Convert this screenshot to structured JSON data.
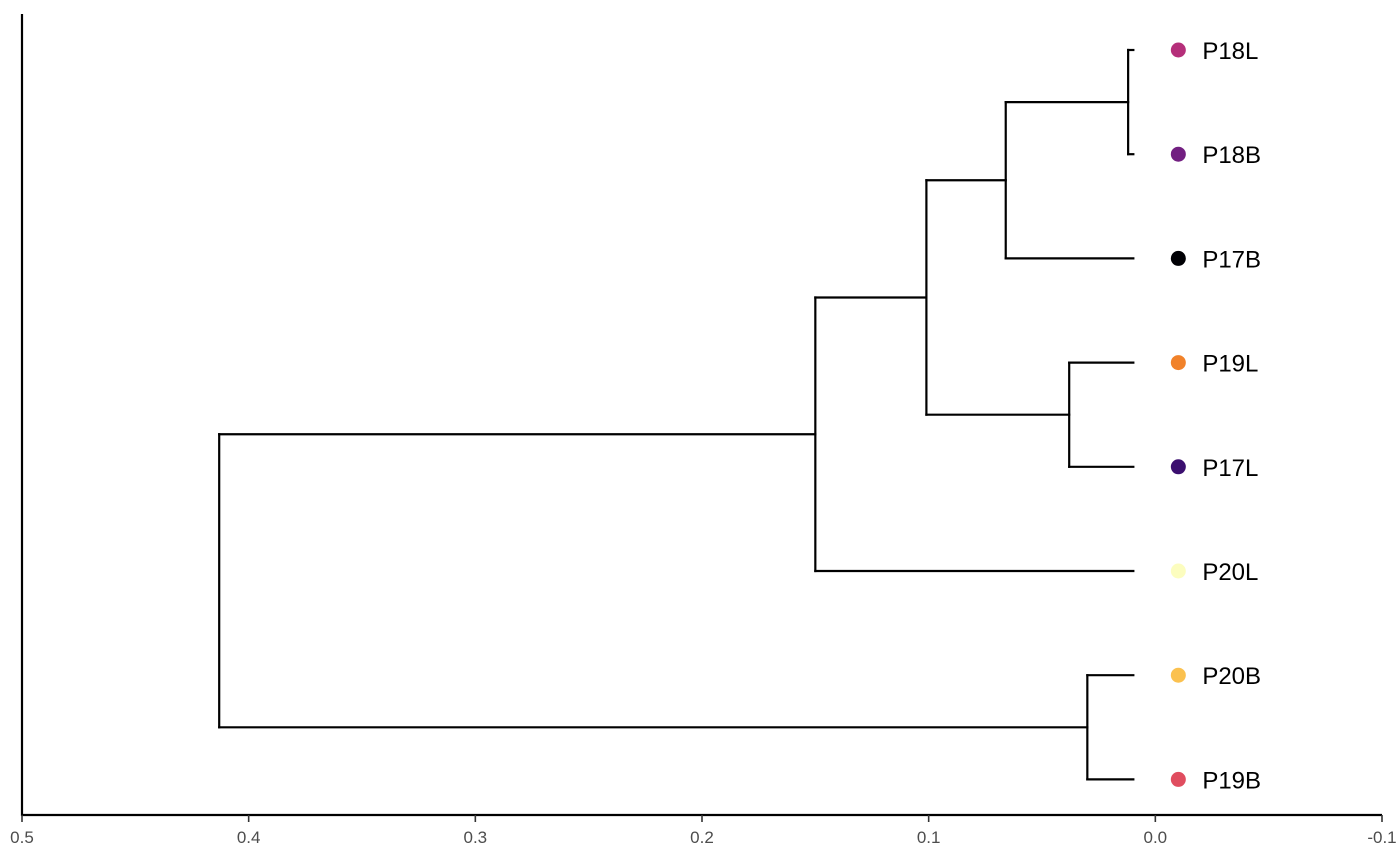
{
  "chart_data": {
    "type": "dendrogram",
    "orientation": "leaves-right",
    "x_axis": {
      "reversed": true,
      "range": [
        0.5,
        -0.1
      ],
      "ticks": [
        0.5,
        0.4,
        0.3,
        0.2,
        0.1,
        0.0,
        -0.1
      ],
      "tick_labels": [
        "0.5",
        "0.4",
        "0.3",
        "0.2",
        "0.1",
        "0.0",
        "-0.1"
      ]
    },
    "leaves": [
      {
        "id": "P18L",
        "label": "P18L",
        "color": "#B52F7A"
      },
      {
        "id": "P18B",
        "label": "P18B",
        "color": "#721F81"
      },
      {
        "id": "P17B",
        "label": "P17B",
        "color": "#000004"
      },
      {
        "id": "P19L",
        "label": "P19L",
        "color": "#F1822A"
      },
      {
        "id": "P17L",
        "label": "P17L",
        "color": "#3B0F6F"
      },
      {
        "id": "P20L",
        "label": "P20L",
        "color": "#FCFDBF"
      },
      {
        "id": "P20B",
        "label": "P20B",
        "color": "#FBC14F"
      },
      {
        "id": "P19B",
        "label": "P19B",
        "color": "#E04D5F"
      }
    ],
    "merges": [
      {
        "id": "m1",
        "children": [
          "P18L",
          "P18B"
        ],
        "height": 0.012
      },
      {
        "id": "m2",
        "children": [
          "m1",
          "P17B"
        ],
        "height": 0.066
      },
      {
        "id": "m3",
        "children": [
          "P19L",
          "P17L"
        ],
        "height": 0.038
      },
      {
        "id": "m4",
        "children": [
          "m2",
          "m3"
        ],
        "height": 0.101
      },
      {
        "id": "m5",
        "children": [
          "m4",
          "P20L"
        ],
        "height": 0.15
      },
      {
        "id": "m6",
        "children": [
          "P20B",
          "P19B"
        ],
        "height": 0.03
      },
      {
        "id": "m7",
        "children": [
          "m5",
          "m6"
        ],
        "height": 0.413
      }
    ]
  }
}
